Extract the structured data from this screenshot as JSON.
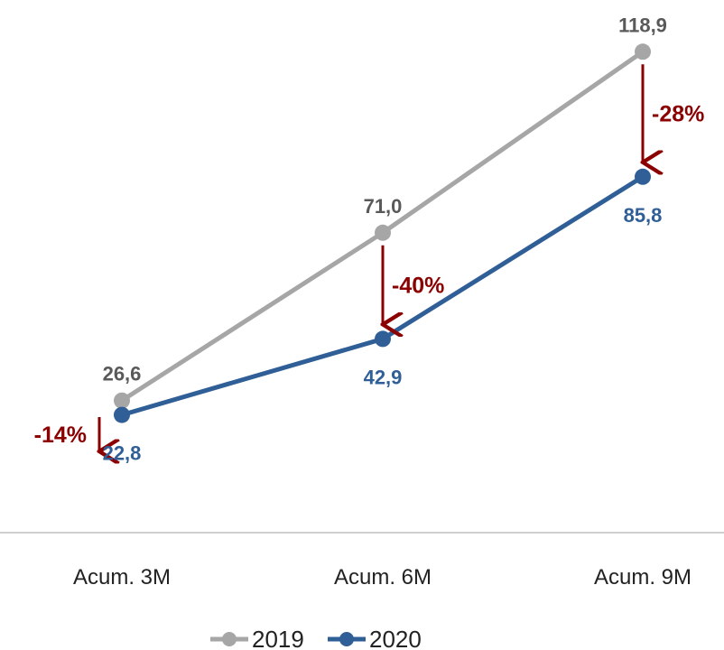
{
  "chart_data": {
    "type": "line",
    "categories": [
      "Acum. 3M",
      "Acum. 6M",
      "Acum. 9M"
    ],
    "series": [
      {
        "name": "2019",
        "values": [
          26.6,
          71.0,
          118.9
        ],
        "labels": [
          "26,6",
          "71,0",
          "118,9"
        ],
        "color": "#a6a6a6"
      },
      {
        "name": "2020",
        "values": [
          22.8,
          42.9,
          85.8
        ],
        "labels": [
          "22,8",
          "42,9",
          "85,8"
        ],
        "color": "#2f5f96"
      }
    ],
    "annotations": [
      {
        "category": "Acum. 3M",
        "text": "-14%"
      },
      {
        "category": "Acum. 6M",
        "text": "-40%"
      },
      {
        "category": "Acum. 9M",
        "text": "-28%"
      }
    ],
    "annotation_color": "#8b0000",
    "legend_position": "bottom",
    "grid": false,
    "ylim": [
      0,
      130
    ]
  }
}
